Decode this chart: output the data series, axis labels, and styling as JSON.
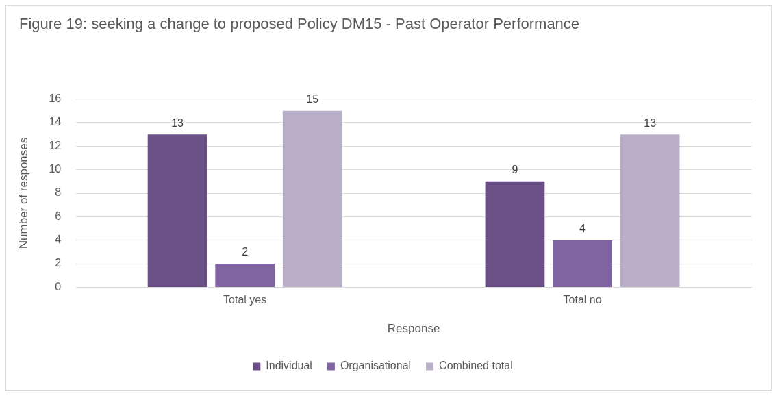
{
  "chart_data": {
    "type": "bar",
    "title": "Figure 19: seeking a change to proposed Policy DM15 - Past Operator Performance",
    "xlabel": "Response",
    "ylabel": "Number of responses",
    "categories": [
      "Total yes",
      "Total no"
    ],
    "series": [
      {
        "name": "Individual",
        "color": "#6a5086",
        "values": [
          13,
          9
        ]
      },
      {
        "name": "Organisational",
        "color": "#8064a2",
        "values": [
          2,
          4
        ]
      },
      {
        "name": "Combined total",
        "color": "#b8aec8",
        "values": [
          15,
          13
        ]
      }
    ],
    "ylim": [
      0,
      16
    ],
    "yticks": [
      0,
      2,
      4,
      6,
      8,
      10,
      12,
      14,
      16
    ],
    "grid": "y",
    "legend": "bottom",
    "data_labels": true
  }
}
